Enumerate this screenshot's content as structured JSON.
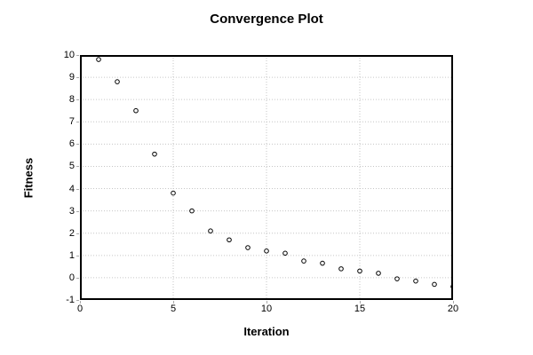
{
  "chart_data": {
    "type": "scatter",
    "title": "Convergence Plot",
    "xlabel": "Iteration",
    "ylabel": "Fitness",
    "x": [
      1,
      2,
      3,
      4,
      5,
      6,
      7,
      8,
      9,
      10,
      11,
      12,
      13,
      14,
      15,
      16,
      17,
      18,
      19,
      20
    ],
    "y": [
      9.8,
      8.8,
      7.5,
      5.55,
      3.8,
      3.0,
      2.1,
      1.7,
      1.35,
      1.2,
      1.1,
      0.75,
      0.65,
      0.4,
      0.3,
      0.2,
      -0.05,
      -0.15,
      -0.3,
      -0.4
    ],
    "xlim": [
      0,
      20
    ],
    "ylim": [
      -1,
      10
    ],
    "xticks": [
      0,
      5,
      10,
      15,
      20
    ],
    "yticks": [
      -1,
      0,
      1,
      2,
      3,
      4,
      5,
      6,
      7,
      8,
      9,
      10
    ],
    "grid": true,
    "grid_style": "dotted",
    "grid_color": "#c6c6c6",
    "axis_color": "#000000",
    "marker": "open-circle",
    "marker_color": "#000000",
    "marker_fill": "#ffffff",
    "background_color": "#ffffff",
    "legend_position": "none"
  }
}
